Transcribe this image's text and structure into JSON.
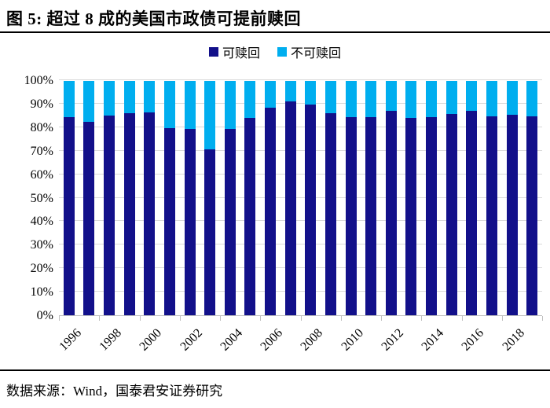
{
  "header": {
    "title": "图 5:  超过 8 成的美国市政债可提前赎回"
  },
  "footer": {
    "text": "数据来源：Wind，国泰君安证券研究"
  },
  "chart_data": {
    "type": "bar",
    "stacked": true,
    "title": "超过 8 成的美国市政债可提前赎回",
    "unit": "%",
    "categories": [
      "1996",
      "1997",
      "1998",
      "1999",
      "2000",
      "2001",
      "2002",
      "2003",
      "2004",
      "2005",
      "2006",
      "2007",
      "2008",
      "2009",
      "2010",
      "2011",
      "2012",
      "2013",
      "2014",
      "2015",
      "2016",
      "2017",
      "2018",
      "2019"
    ],
    "series": [
      {
        "name": "可赎回",
        "color": "#12108a",
        "values": [
          84.6,
          82.7,
          85.4,
          86.2,
          86.7,
          79.7,
          79.4,
          70.9,
          79.4,
          84.2,
          88.5,
          91.2,
          90.0,
          86.3,
          84.4,
          84.4,
          87.2,
          84.1,
          84.4,
          86.0,
          87.2,
          84.8,
          85.6,
          84.9
        ]
      },
      {
        "name": "不可赎回",
        "color": "#00aeef",
        "values": [
          15.4,
          17.3,
          14.6,
          13.8,
          13.3,
          20.3,
          20.6,
          29.1,
          20.6,
          15.8,
          11.5,
          8.8,
          10.0,
          13.7,
          15.6,
          15.6,
          12.8,
          15.9,
          15.6,
          14.0,
          12.8,
          15.2,
          14.4,
          15.1
        ]
      }
    ],
    "xlabel": "",
    "ylabel": "",
    "ylim": [
      0,
      100
    ],
    "yticks": [
      "0%",
      "10%",
      "20%",
      "30%",
      "40%",
      "50%",
      "60%",
      "70%",
      "80%",
      "90%",
      "100%"
    ],
    "x_shown_labels": [
      "1996",
      "1998",
      "2000",
      "2002",
      "2004",
      "2006",
      "2008",
      "2010",
      "2012",
      "2014",
      "2016",
      "2018"
    ],
    "grid": true,
    "legend_position": "top",
    "gridline_color": "#d9d9d9",
    "axis_color": "#bfbfbf"
  }
}
